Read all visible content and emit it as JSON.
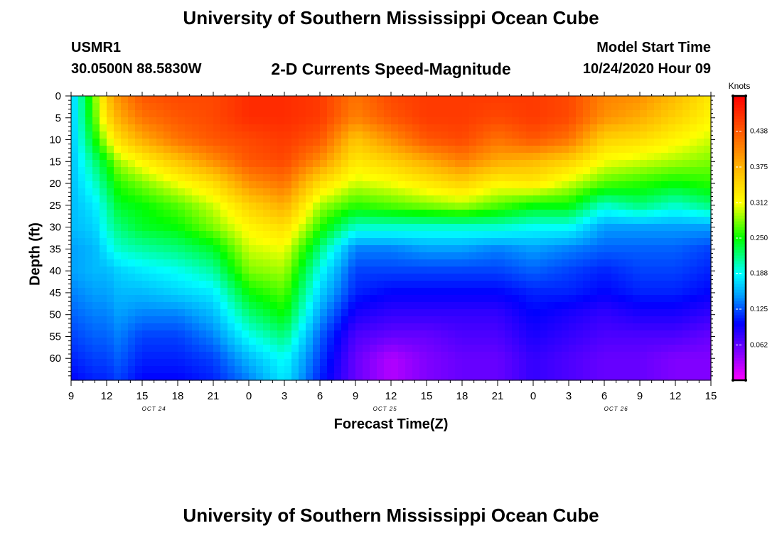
{
  "header": {
    "title_top": "University of Southern Mississippi Ocean Cube",
    "station": "USMR1",
    "coords": "30.0500N 88.5830W",
    "plot_title": "2-D Currents Speed-Magnitude",
    "model_label": "Model Start Time",
    "model_time": "10/24/2020 Hour 09"
  },
  "footer": {
    "title_bottom": "University of Southern Mississippi Ocean Cube"
  },
  "chart_data": {
    "type": "heatmap",
    "title": "2-D Currents Speed-Magnitude",
    "xlabel": "Forecast Time(Z)",
    "ylabel": "Depth (ft)",
    "x_hours": [
      0,
      6,
      12,
      18,
      24,
      30,
      36,
      42,
      48,
      54
    ],
    "x_tick_labels": [
      "9",
      "12",
      "15",
      "18",
      "21",
      "0",
      "3",
      "6",
      "9",
      "12",
      "15",
      "18",
      "21",
      "0",
      "3",
      "6",
      "9",
      "12",
      "15"
    ],
    "x_date_labels": [
      {
        "label": "OCT 24",
        "hour": 7
      },
      {
        "label": "OCT 25",
        "hour": 26.5
      },
      {
        "label": "OCT 26",
        "hour": 46
      }
    ],
    "y_ticks": [
      0,
      5,
      10,
      15,
      20,
      25,
      30,
      35,
      40,
      45,
      50,
      55,
      60
    ],
    "y_range": [
      0,
      65
    ],
    "x_range_hours": [
      0,
      54
    ],
    "colorbar": {
      "title": "Knots",
      "tick_labels": [
        "0.438",
        "0.375",
        "0.312",
        "0.250",
        "0.188",
        "0.125",
        "0.062"
      ],
      "tick_values": [
        0.438,
        0.375,
        0.312,
        0.25,
        0.188,
        0.125,
        0.062
      ],
      "range": [
        0.0,
        0.5
      ]
    },
    "depths": [
      0,
      5,
      10,
      15,
      20,
      25,
      30,
      35,
      40,
      45,
      50,
      55,
      60,
      65
    ],
    "grid_hours": [
      0,
      2,
      3,
      4,
      6,
      9,
      12,
      15,
      18,
      21,
      24,
      27,
      30,
      33,
      36,
      39,
      42,
      45,
      48,
      51,
      54
    ],
    "speed_profiles": [
      [
        0.16,
        0.16,
        0.16,
        0.16,
        0.16,
        0.16,
        0.16,
        0.15,
        0.15,
        0.14,
        0.13,
        0.12,
        0.11,
        0.1
      ],
      [
        0.28,
        0.27,
        0.25,
        0.22,
        0.2,
        0.18,
        0.17,
        0.16,
        0.16,
        0.15,
        0.14,
        0.13,
        0.12,
        0.11
      ],
      [
        0.36,
        0.34,
        0.3,
        0.25,
        0.23,
        0.21,
        0.2,
        0.18,
        0.16,
        0.15,
        0.14,
        0.13,
        0.12,
        0.11
      ],
      [
        0.4,
        0.38,
        0.34,
        0.29,
        0.26,
        0.24,
        0.22,
        0.2,
        0.17,
        0.16,
        0.15,
        0.14,
        0.13,
        0.12
      ],
      [
        0.44,
        0.42,
        0.38,
        0.32,
        0.28,
        0.25,
        0.24,
        0.21,
        0.18,
        0.16,
        0.14,
        0.12,
        0.11,
        0.1
      ],
      [
        0.45,
        0.44,
        0.42,
        0.36,
        0.31,
        0.27,
        0.25,
        0.22,
        0.19,
        0.17,
        0.14,
        0.12,
        0.11,
        0.1
      ],
      [
        0.45,
        0.45,
        0.44,
        0.4,
        0.34,
        0.3,
        0.28,
        0.24,
        0.21,
        0.18,
        0.16,
        0.14,
        0.12,
        0.11
      ],
      [
        0.47,
        0.47,
        0.45,
        0.44,
        0.4,
        0.35,
        0.32,
        0.3,
        0.28,
        0.25,
        0.22,
        0.19,
        0.16,
        0.14
      ],
      [
        0.47,
        0.47,
        0.46,
        0.45,
        0.42,
        0.38,
        0.34,
        0.31,
        0.29,
        0.27,
        0.25,
        0.22,
        0.19,
        0.18
      ],
      [
        0.46,
        0.46,
        0.44,
        0.4,
        0.34,
        0.29,
        0.26,
        0.22,
        0.19,
        0.17,
        0.15,
        0.13,
        0.12,
        0.11
      ],
      [
        0.42,
        0.41,
        0.36,
        0.33,
        0.3,
        0.26,
        0.2,
        0.14,
        0.12,
        0.11,
        0.09,
        0.07,
        0.06,
        0.06
      ],
      [
        0.45,
        0.44,
        0.4,
        0.35,
        0.31,
        0.27,
        0.2,
        0.14,
        0.12,
        0.1,
        0.08,
        0.06,
        0.03,
        0.03
      ],
      [
        0.46,
        0.46,
        0.44,
        0.38,
        0.33,
        0.28,
        0.2,
        0.15,
        0.12,
        0.1,
        0.08,
        0.06,
        0.05,
        0.05
      ],
      [
        0.46,
        0.46,
        0.45,
        0.41,
        0.35,
        0.29,
        0.2,
        0.15,
        0.12,
        0.1,
        0.08,
        0.07,
        0.06,
        0.06
      ],
      [
        0.46,
        0.45,
        0.42,
        0.38,
        0.32,
        0.27,
        0.2,
        0.14,
        0.12,
        0.1,
        0.08,
        0.07,
        0.06,
        0.06
      ],
      [
        0.46,
        0.46,
        0.44,
        0.37,
        0.33,
        0.25,
        0.19,
        0.15,
        0.13,
        0.11,
        0.1,
        0.09,
        0.08,
        0.08
      ],
      [
        0.45,
        0.45,
        0.42,
        0.35,
        0.3,
        0.25,
        0.19,
        0.14,
        0.12,
        0.11,
        0.09,
        0.08,
        0.07,
        0.07
      ],
      [
        0.41,
        0.4,
        0.35,
        0.31,
        0.27,
        0.2,
        0.15,
        0.13,
        0.11,
        0.1,
        0.08,
        0.07,
        0.06,
        0.06
      ],
      [
        0.4,
        0.38,
        0.34,
        0.3,
        0.26,
        0.22,
        0.15,
        0.13,
        0.12,
        0.11,
        0.09,
        0.07,
        0.06,
        0.06
      ],
      [
        0.37,
        0.35,
        0.32,
        0.29,
        0.25,
        0.2,
        0.15,
        0.13,
        0.12,
        0.11,
        0.09,
        0.07,
        0.05,
        0.05
      ],
      [
        0.33,
        0.32,
        0.3,
        0.28,
        0.26,
        0.22,
        0.15,
        0.12,
        0.11,
        0.1,
        0.08,
        0.06,
        0.05,
        0.05
      ]
    ]
  }
}
